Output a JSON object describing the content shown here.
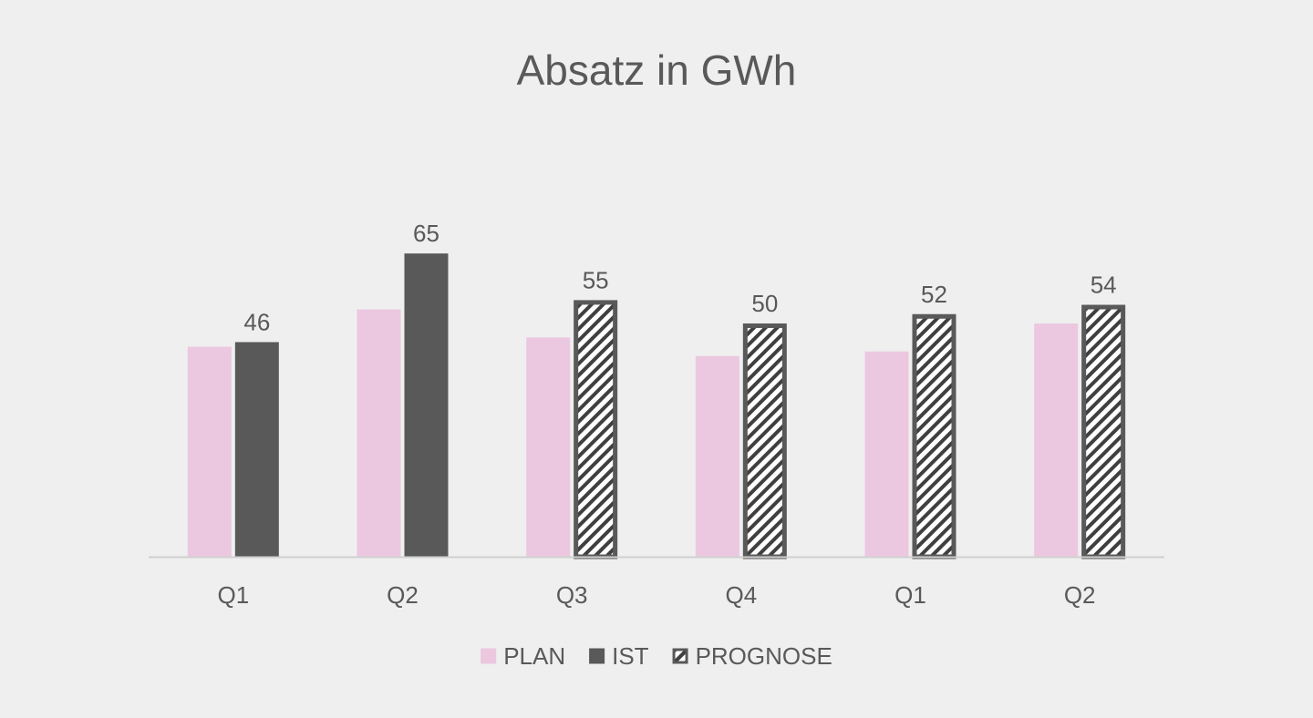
{
  "chart_data": {
    "type": "bar",
    "title": "Absatz in GWh",
    "xlabel": "",
    "ylabel": "",
    "categories": [
      "Q1",
      "Q2",
      "Q3",
      "Q4",
      "Q1",
      "Q2"
    ],
    "ylim": [
      0,
      80
    ],
    "grid": false,
    "legend_position": "bottom",
    "series": [
      {
        "name": "PLAN",
        "values": [
          45,
          53,
          47,
          43,
          44,
          50
        ],
        "color": "#ecc7e0",
        "style": "solid",
        "show_labels": false
      },
      {
        "name": "IST",
        "values": [
          46,
          65,
          null,
          null,
          null,
          null
        ],
        "color": "#595959",
        "style": "solid",
        "show_labels": true
      },
      {
        "name": "PROGNOSE",
        "values": [
          null,
          null,
          55,
          50,
          52,
          54
        ],
        "color": "#595959",
        "style": "hatched",
        "show_labels": true
      }
    ]
  }
}
